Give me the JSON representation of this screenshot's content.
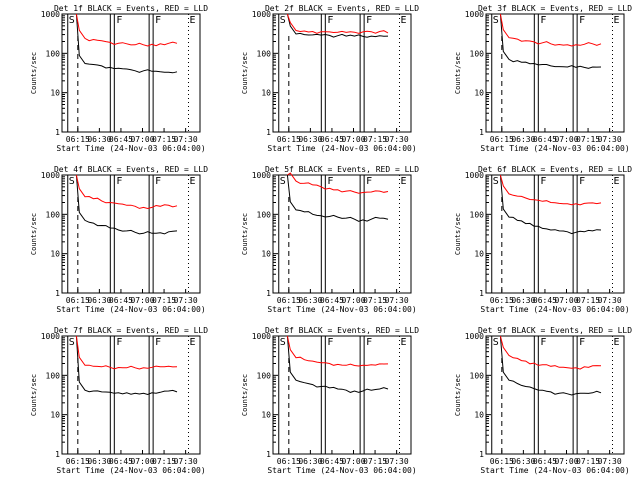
{
  "chart_data": [
    {
      "type": "line",
      "title": "Det 1f BLACK = Events, RED = LLD",
      "xlabel": "Start Time (24-Nov-03 06:04:00)",
      "ylabel": "Counts/sec",
      "yscale": "log",
      "ylim": [
        1,
        1000
      ],
      "yticks": [
        "1",
        "10",
        "100",
        "1000"
      ],
      "xticks": [
        "06:15",
        "06:30",
        "06:45",
        "07:00",
        "07:15",
        "07:30"
      ],
      "markers": [
        "S",
        "F",
        "F",
        "E"
      ],
      "series": [
        {
          "name": "Events",
          "color": "#000000",
          "values": [
            55,
            52,
            48,
            44,
            42,
            40,
            36,
            36,
            35,
            34,
            33,
            34
          ]
        },
        {
          "name": "LLD",
          "color": "#ff0000",
          "values": [
            240,
            225,
            210,
            190,
            180,
            175,
            165,
            165,
            170,
            175,
            180,
            180
          ]
        }
      ]
    },
    {
      "type": "line",
      "title": "Det 2f BLACK = Events, RED = LLD",
      "xlabel": "Start Time (24-Nov-03 06:04:00)",
      "ylabel": "Counts/sec",
      "yscale": "log",
      "ylim": [
        1,
        1000
      ],
      "yticks": [
        "1",
        "10",
        "100",
        "1000"
      ],
      "xticks": [
        "06:15",
        "06:30",
        "06:45",
        "07:00",
        "07:15",
        "07:30"
      ],
      "markers": [
        "S",
        "F",
        "F",
        "E"
      ],
      "series": [
        {
          "name": "Events",
          "color": "#000000",
          "values": [
            310,
            300,
            295,
            290,
            285,
            280,
            275,
            275,
            270,
            275,
            280,
            275
          ]
        },
        {
          "name": "LLD",
          "color": "#ff0000",
          "values": [
            380,
            370,
            360,
            355,
            350,
            345,
            340,
            345,
            350,
            355,
            360,
            330
          ]
        }
      ]
    },
    {
      "type": "line",
      "title": "Det 3f BLACK = Events, RED = LLD",
      "xlabel": "Start Time (24-Nov-03 06:04:00)",
      "ylabel": "Counts/sec",
      "yscale": "log",
      "ylim": [
        1,
        1000
      ],
      "yticks": [
        "1",
        "10",
        "100",
        "1000"
      ],
      "xticks": [
        "06:15",
        "06:30",
        "06:45",
        "07:00",
        "07:15",
        "07:30"
      ],
      "markers": [
        "S",
        "F",
        "F",
        "E"
      ],
      "series": [
        {
          "name": "Events",
          "color": "#000000",
          "values": [
            70,
            65,
            60,
            55,
            52,
            48,
            46,
            45,
            44,
            44,
            45,
            45
          ]
        },
        {
          "name": "LLD",
          "color": "#ff0000",
          "values": [
            250,
            230,
            210,
            195,
            185,
            175,
            168,
            165,
            165,
            170,
            175,
            175
          ]
        }
      ]
    },
    {
      "type": "line",
      "title": "Det 4f BLACK = Events, RED = LLD",
      "xlabel": "Start Time (24-Nov-03 06:04:00)",
      "ylabel": "Counts/sec",
      "yscale": "log",
      "ylim": [
        1,
        1000
      ],
      "yticks": [
        "1",
        "10",
        "100",
        "1000"
      ],
      "xticks": [
        "06:15",
        "06:30",
        "06:45",
        "07:00",
        "07:15",
        "07:30"
      ],
      "markers": [
        "S",
        "F",
        "F",
        "E"
      ],
      "series": [
        {
          "name": "Events",
          "color": "#000000",
          "values": [
            70,
            60,
            52,
            45,
            40,
            38,
            35,
            33,
            33,
            34,
            36,
            38
          ]
        },
        {
          "name": "LLD",
          "color": "#ff0000",
          "values": [
            280,
            250,
            220,
            200,
            185,
            170,
            160,
            150,
            150,
            160,
            170,
            165
          ]
        }
      ]
    },
    {
      "type": "line",
      "title": "Det 5f BLACK = Events, RED = LLD",
      "xlabel": "Start Time (24-Nov-03 06:04:00)",
      "ylabel": "Counts/sec",
      "yscale": "log",
      "ylim": [
        1,
        1000
      ],
      "yticks": [
        "1",
        "10",
        "100",
        "1000"
      ],
      "xticks": [
        "06:15",
        "06:30",
        "06:45",
        "07:00",
        "07:15",
        "07:30"
      ],
      "markers": [
        "S",
        "F",
        "F",
        "E"
      ],
      "series": [
        {
          "name": "Events",
          "color": "#000000",
          "values": [
            130,
            115,
            100,
            92,
            88,
            85,
            80,
            75,
            72,
            75,
            80,
            75
          ]
        },
        {
          "name": "LLD",
          "color": "#ff0000",
          "values": [
            700,
            620,
            560,
            500,
            460,
            420,
            390,
            370,
            360,
            370,
            390,
            380
          ]
        }
      ]
    },
    {
      "type": "line",
      "title": "Det 6f BLACK = Events, RED = LLD",
      "xlabel": "Start Time (24-Nov-03 06:04:00)",
      "ylabel": "Counts/sec",
      "yscale": "log",
      "ylim": [
        1,
        1000
      ],
      "yticks": [
        "1",
        "10",
        "100",
        "1000"
      ],
      "xticks": [
        "06:15",
        "06:30",
        "06:45",
        "07:00",
        "07:15",
        "07:30"
      ],
      "markers": [
        "S",
        "F",
        "F",
        "E"
      ],
      "series": [
        {
          "name": "Events",
          "color": "#000000",
          "values": [
            85,
            70,
            58,
            50,
            44,
            40,
            38,
            36,
            35,
            36,
            38,
            40
          ]
        },
        {
          "name": "LLD",
          "color": "#ff0000",
          "values": [
            330,
            290,
            260,
            235,
            215,
            200,
            190,
            185,
            185,
            190,
            195,
            195
          ]
        }
      ]
    },
    {
      "type": "line",
      "title": "Det 7f BLACK = Events, RED = LLD",
      "xlabel": "Start Time (24-Nov-03 06:04:00)",
      "ylabel": "Counts/sec",
      "yscale": "log",
      "ylim": [
        1,
        1000
      ],
      "yticks": [
        "1",
        "10",
        "100",
        "1000"
      ],
      "xticks": [
        "06:15",
        "06:30",
        "06:45",
        "07:00",
        "07:15",
        "07:30"
      ],
      "markers": [
        "S",
        "F",
        "F",
        "E"
      ],
      "series": [
        {
          "name": "Events",
          "color": "#000000",
          "values": [
            42,
            40,
            38,
            37,
            36,
            36,
            35,
            35,
            36,
            37,
            40,
            38
          ]
        },
        {
          "name": "LLD",
          "color": "#ff0000",
          "values": [
            180,
            170,
            165,
            160,
            158,
            155,
            155,
            155,
            160,
            165,
            170,
            165
          ]
        }
      ]
    },
    {
      "type": "line",
      "title": "Det 8f BLACK = Events, RED = LLD",
      "xlabel": "Start Time (24-Nov-03 06:04:00)",
      "ylabel": "Counts/sec",
      "yscale": "log",
      "ylim": [
        1,
        1000
      ],
      "yticks": [
        "1",
        "10",
        "100",
        "1000"
      ],
      "xticks": [
        "06:15",
        "06:30",
        "06:45",
        "07:00",
        "07:15",
        "07:30"
      ],
      "markers": [
        "S",
        "F",
        "F",
        "E"
      ],
      "series": [
        {
          "name": "Events",
          "color": "#000000",
          "values": [
            75,
            65,
            58,
            52,
            48,
            45,
            42,
            40,
            40,
            42,
            45,
            45
          ]
        },
        {
          "name": "LLD",
          "color": "#ff0000",
          "values": [
            280,
            250,
            230,
            210,
            200,
            190,
            180,
            178,
            180,
            185,
            195,
            195
          ]
        }
      ]
    },
    {
      "type": "line",
      "title": "Det 9f BLACK = Events, RED = LLD",
      "xlabel": "Start Time (24-Nov-03 06:04:00)",
      "ylabel": "Counts/sec",
      "yscale": "log",
      "ylim": [
        1,
        1000
      ],
      "yticks": [
        "1",
        "10",
        "100",
        "1000"
      ],
      "xticks": [
        "06:15",
        "06:30",
        "06:45",
        "07:00",
        "07:15",
        "07:30"
      ],
      "markers": [
        "S",
        "F",
        "F",
        "E"
      ],
      "series": [
        {
          "name": "Events",
          "color": "#000000",
          "values": [
            75,
            62,
            52,
            46,
            42,
            38,
            35,
            34,
            34,
            35,
            36,
            36
          ]
        },
        {
          "name": "LLD",
          "color": "#ff0000",
          "values": [
            320,
            270,
            230,
            205,
            185,
            170,
            160,
            155,
            155,
            165,
            175,
            175
          ]
        }
      ]
    }
  ]
}
